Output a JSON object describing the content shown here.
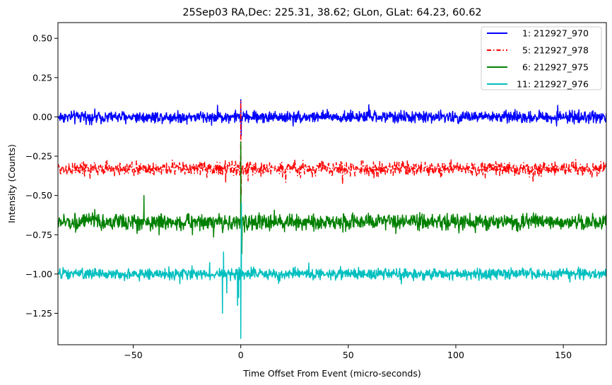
{
  "chart_data": {
    "type": "line",
    "title": "25Sep03 RA,Dec:  225.31,  38.62; GLon, GLat:   64.23,  60.62",
    "xlabel": "Time Offset From Event (micro-seconds)",
    "ylabel": "Intensity (Counts)",
    "xlim": [
      -85,
      170
    ],
    "ylim": [
      -1.45,
      0.6
    ],
    "xticks": [
      -50,
      0,
      50,
      100,
      150
    ],
    "xtick_labels": [
      "−50",
      "0",
      "50",
      "100",
      "150"
    ],
    "yticks": [
      0.5,
      0.25,
      0.0,
      -0.25,
      -0.5,
      -0.75,
      -1.0,
      -1.25
    ],
    "ytick_labels": [
      "0.50",
      "0.25",
      "0.00",
      "−0.25",
      "−0.50",
      "−0.75",
      "−1.00",
      "−1.25"
    ],
    "grid": false,
    "legend_position": "top-right",
    "series": [
      {
        "name": "  1: 212927_970",
        "color": "#0000ff",
        "linestyle": "solid",
        "baseline": 0.0,
        "noise_amplitude": 0.055,
        "x_range": [
          -85,
          170
        ],
        "features": [
          {
            "x": 0.0,
            "y": 0.11
          },
          {
            "x": 0.2,
            "y": -0.12
          }
        ]
      },
      {
        "name": "  5: 212927_978",
        "color": "#ff0000",
        "linestyle": "dashdot",
        "baseline": -0.33,
        "noise_amplitude": 0.065,
        "x_range": [
          -85,
          170
        ],
        "features": [
          {
            "x": 0.0,
            "y": 0.1
          },
          {
            "x": 0.2,
            "y": -0.5
          },
          {
            "x": -7.0,
            "y": -0.42
          }
        ]
      },
      {
        "name": "  6: 212927_975",
        "color": "#008000",
        "linestyle": "solid",
        "baseline": -0.67,
        "noise_amplitude": 0.075,
        "x_range": [
          -85,
          170
        ],
        "features": [
          {
            "x": 0.0,
            "y": -0.16
          },
          {
            "x": 0.5,
            "y": -0.87
          },
          {
            "x": -45.0,
            "y": -0.5
          }
        ]
      },
      {
        "name": "11: 212927_976",
        "color": "#00bfbf",
        "linestyle": "solid",
        "baseline": -1.0,
        "noise_amplitude": 0.05,
        "x_range": [
          -85,
          170
        ],
        "features": [
          {
            "x": -8.5,
            "y": -1.25
          },
          {
            "x": -8.0,
            "y": -0.86
          },
          {
            "x": -6.5,
            "y": -1.12
          },
          {
            "x": -1.5,
            "y": -1.2
          },
          {
            "x": -1.0,
            "y": -1.15
          },
          {
            "x": 0.0,
            "y": -1.41
          },
          {
            "x": 0.3,
            "y": -0.55
          }
        ]
      }
    ]
  }
}
